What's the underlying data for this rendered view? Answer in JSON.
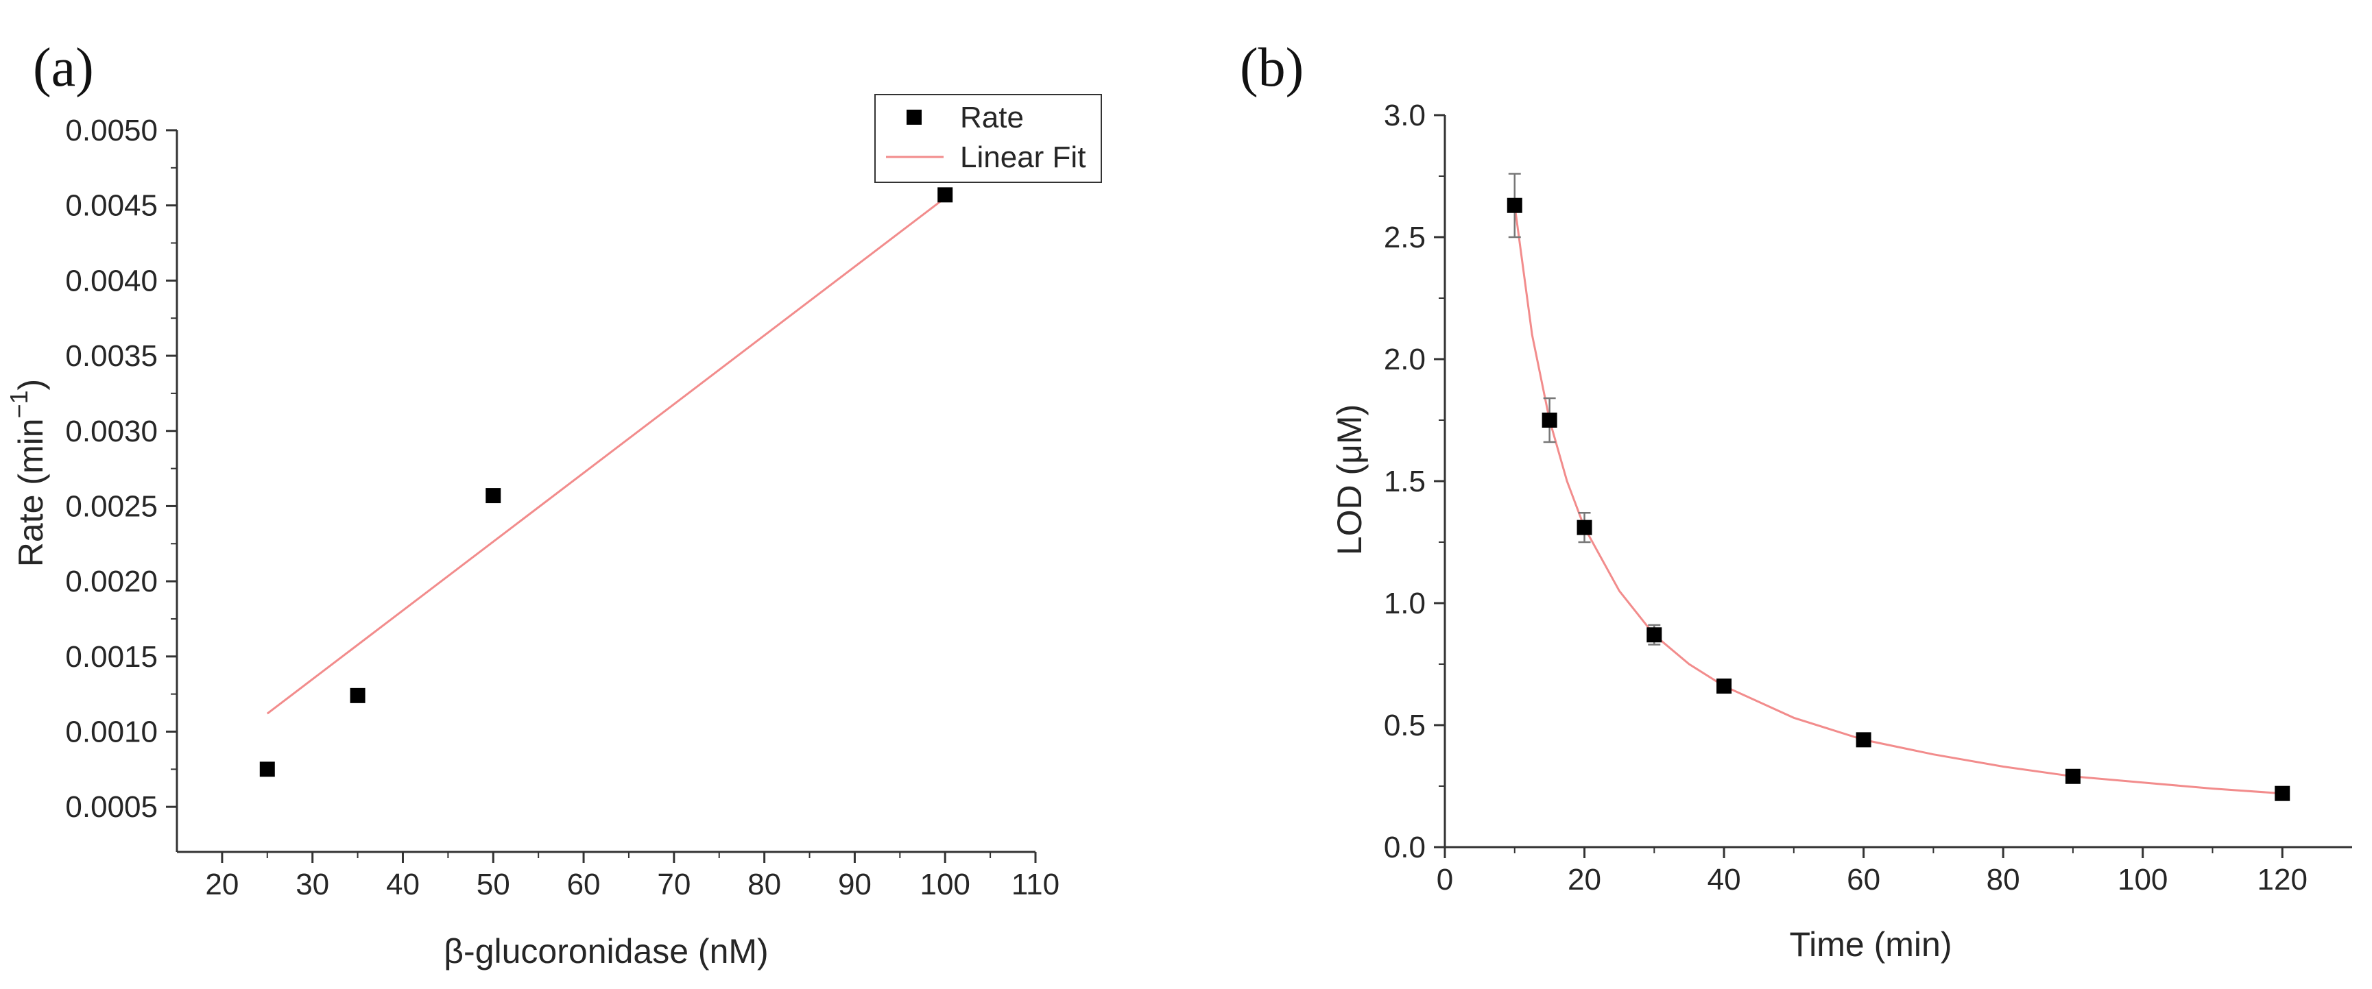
{
  "colors": {
    "fit_line": "#f28c8c",
    "marker": "#000000",
    "axis": "#333333",
    "error_bar": "#777777"
  },
  "chart_data": [
    {
      "panel": "(a)",
      "type": "scatter",
      "xlabel": "β-glucoronidase (nM)",
      "ylabel": "Rate (min",
      "ylabel_sup": "−1",
      "ylabel_close": ")",
      "xlim": [
        15,
        110
      ],
      "ylim": [
        0.0002,
        0.005
      ],
      "xticks": [
        20,
        30,
        40,
        50,
        60,
        70,
        80,
        90,
        100,
        110
      ],
      "yticks": [
        0.0005,
        0.001,
        0.0015,
        0.002,
        0.0025,
        0.003,
        0.0035,
        0.004,
        0.0045,
        0.005
      ],
      "ytick_labels": [
        "0.0005",
        "0.0010",
        "0.0015",
        "0.0020",
        "0.0025",
        "0.0030",
        "0.0035",
        "0.0040",
        "0.0045",
        "0.0050"
      ],
      "series": [
        {
          "name": "Rate",
          "kind": "points",
          "x": [
            25,
            35,
            50,
            100
          ],
          "y": [
            0.00075,
            0.00124,
            0.00257,
            0.00457
          ]
        },
        {
          "name": "Linear Fit",
          "kind": "line",
          "x": [
            25,
            100
          ],
          "y": [
            0.00112,
            0.00455
          ]
        }
      ],
      "legend": {
        "placement": "top-right",
        "entries": [
          "Rate",
          "Linear Fit"
        ]
      }
    },
    {
      "panel": "(b)",
      "type": "scatter",
      "xlabel": "Time (min)",
      "ylabel": "LOD (μM)",
      "xlim": [
        0,
        130
      ],
      "ylim": [
        0,
        3.0
      ],
      "xticks": [
        0,
        20,
        40,
        60,
        80,
        100,
        120
      ],
      "yticks": [
        0,
        0.5,
        1.0,
        1.5,
        2.0,
        2.5,
        3.0
      ],
      "ytick_labels": [
        "0.0",
        "0.5",
        "1.0",
        "1.5",
        "2.0",
        "2.5",
        "3.0"
      ],
      "series": [
        {
          "name": "LOD",
          "kind": "points",
          "x": [
            10,
            15,
            20,
            30,
            40,
            60,
            90,
            120
          ],
          "y": [
            2.63,
            1.75,
            1.31,
            0.87,
            0.66,
            0.44,
            0.29,
            0.22
          ],
          "error": [
            0.13,
            0.09,
            0.06,
            0.04,
            0.02,
            0.02,
            0.01,
            0.01
          ]
        },
        {
          "name": "Fit",
          "kind": "curve",
          "x": [
            10,
            12.5,
            15,
            17.5,
            20,
            25,
            30,
            35,
            40,
            50,
            60,
            70,
            80,
            90,
            100,
            110,
            120
          ],
          "y": [
            2.63,
            2.1,
            1.75,
            1.5,
            1.31,
            1.05,
            0.87,
            0.75,
            0.66,
            0.53,
            0.44,
            0.38,
            0.33,
            0.29,
            0.265,
            0.24,
            0.22
          ]
        }
      ]
    }
  ]
}
